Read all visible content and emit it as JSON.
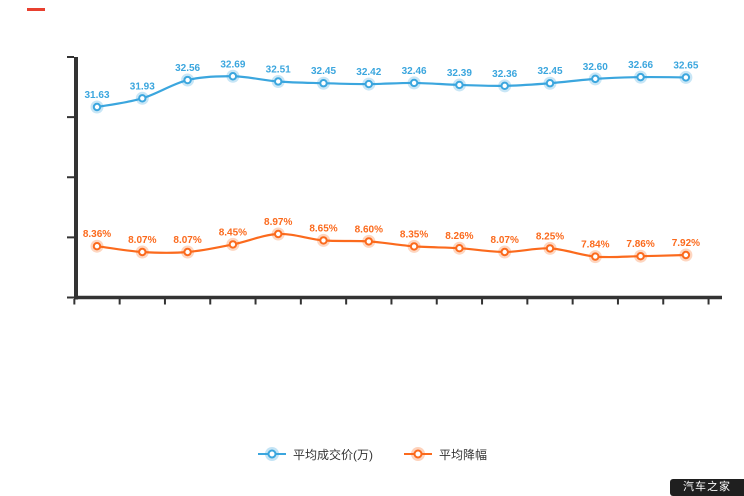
{
  "page": {
    "background_color": "#ffffff",
    "accent_red": "#e8402f"
  },
  "legend": {
    "items": [
      {
        "label": "平均成交价(万)",
        "color": "#3ba6de"
      },
      {
        "label": "平均降幅",
        "color": "#fb6a1d"
      }
    ]
  },
  "watermark": {
    "text": "汽车之家",
    "background": "#000000",
    "text_color": "#ffffff"
  },
  "chart_data": {
    "type": "line",
    "title": "",
    "xlabel": "",
    "ylabel": "",
    "x_axis_labels_visible": false,
    "y_axis_labels_visible": false,
    "x_tick_count": 15,
    "y_tick_count": 5,
    "grid": false,
    "legend_position": "bottom",
    "axis_color": "#333333",
    "point_count": 14,
    "series": [
      {
        "name": "平均成交价(万)",
        "color": "#3ba6de",
        "unit": "万",
        "values": [
          31.63,
          31.93,
          32.56,
          32.69,
          32.51,
          32.45,
          32.42,
          32.46,
          32.39,
          32.36,
          32.45,
          32.6,
          32.66,
          32.65
        ],
        "labels": [
          "31.63",
          "31.93",
          "32.56",
          "32.69",
          "32.51",
          "32.45",
          "32.42",
          "32.46",
          "32.39",
          "32.36",
          "32.45",
          "32.60",
          "32.66",
          "32.65"
        ]
      },
      {
        "name": "平均降幅",
        "color": "#fb6a1d",
        "unit": "%",
        "values": [
          8.36,
          8.07,
          8.07,
          8.45,
          8.97,
          8.65,
          8.6,
          8.35,
          8.26,
          8.07,
          8.25,
          7.84,
          7.86,
          7.92
        ],
        "labels": [
          "8.36%",
          "8.07%",
          "8.07%",
          "8.45%",
          "8.97%",
          "8.65%",
          "8.60%",
          "8.35%",
          "8.26%",
          "8.07%",
          "8.25%",
          "7.84%",
          "7.86%",
          "7.92%"
        ]
      }
    ]
  }
}
